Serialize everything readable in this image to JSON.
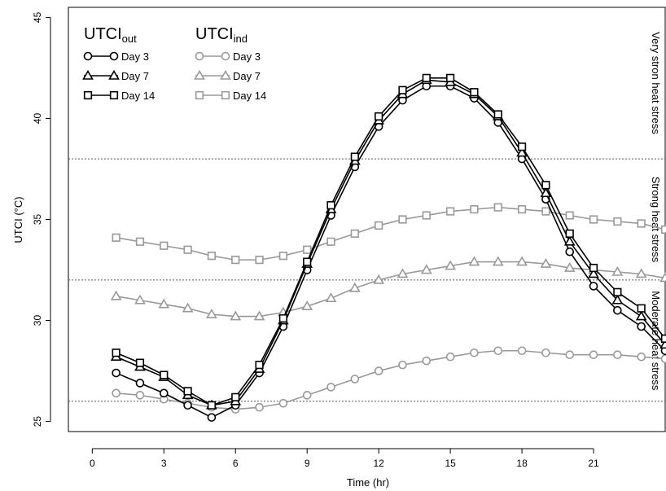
{
  "chart_data": {
    "type": "line",
    "xlabel": "Time (hr)",
    "ylabel": "UTCI (°C)",
    "xlim": [
      -1,
      24
    ],
    "ylim": [
      24.5,
      45.5
    ],
    "x_ticks": [
      0,
      3,
      6,
      9,
      12,
      15,
      18,
      21
    ],
    "y_ticks": [
      25,
      30,
      35,
      40,
      45
    ],
    "x": [
      1,
      2,
      3,
      4,
      5,
      6,
      7,
      8,
      9,
      10,
      11,
      12,
      13,
      14,
      15,
      16,
      17,
      18,
      19,
      20,
      21,
      22,
      23,
      24
    ],
    "thresholds": [
      {
        "value": 38,
        "label": "Very stron heat stress",
        "label_from": 38,
        "label_to": 45.5
      },
      {
        "value": 32,
        "label": "Strong heat stress",
        "label_from": 32,
        "label_to": 38
      },
      {
        "value": 26,
        "label": "Moderate heat stress",
        "label_from": 26,
        "label_to": 32
      }
    ],
    "legend_groups": [
      {
        "title_main": "UTCI",
        "title_sub": "out",
        "group": "out"
      },
      {
        "title_main": "UTCI",
        "title_sub": "ind",
        "group": "ind"
      }
    ],
    "series": [
      {
        "group": "out",
        "name": "Day 3",
        "marker": "circle",
        "color": "#000000",
        "values": [
          27.4,
          26.9,
          26.4,
          25.8,
          25.2,
          25.8,
          27.4,
          29.7,
          32.5,
          35.2,
          37.6,
          39.6,
          40.9,
          41.6,
          41.6,
          41.0,
          39.8,
          38.0,
          36.0,
          33.4,
          31.7,
          30.5,
          29.7,
          28.5
        ]
      },
      {
        "group": "out",
        "name": "Day 7",
        "marker": "triangle",
        "color": "#000000",
        "values": [
          28.2,
          27.7,
          27.2,
          26.3,
          25.8,
          26.0,
          27.6,
          30.0,
          32.8,
          35.5,
          37.9,
          39.9,
          41.2,
          41.9,
          41.8,
          41.2,
          40.1,
          38.3,
          36.3,
          33.9,
          32.3,
          31.0,
          30.2,
          28.8
        ]
      },
      {
        "group": "out",
        "name": "Day 14",
        "marker": "square",
        "color": "#000000",
        "values": [
          28.4,
          27.9,
          27.3,
          26.5,
          25.8,
          26.2,
          27.8,
          30.1,
          32.9,
          35.7,
          38.1,
          40.1,
          41.4,
          42.0,
          42.0,
          41.3,
          40.2,
          38.6,
          36.7,
          34.3,
          32.6,
          31.4,
          30.6,
          29.1
        ]
      },
      {
        "group": "ind",
        "name": "Day 3",
        "marker": "circle",
        "color": "#999999",
        "values": [
          26.4,
          26.3,
          26.1,
          25.9,
          25.7,
          25.6,
          25.7,
          25.9,
          26.3,
          26.7,
          27.1,
          27.5,
          27.8,
          28.0,
          28.2,
          28.4,
          28.5,
          28.5,
          28.4,
          28.3,
          28.3,
          28.3,
          28.2,
          28.1
        ]
      },
      {
        "group": "ind",
        "name": "Day 7",
        "marker": "triangle",
        "color": "#999999",
        "values": [
          31.2,
          31.0,
          30.8,
          30.6,
          30.3,
          30.2,
          30.2,
          30.4,
          30.7,
          31.1,
          31.6,
          32.0,
          32.3,
          32.5,
          32.7,
          32.9,
          32.9,
          32.9,
          32.8,
          32.6,
          32.5,
          32.4,
          32.3,
          32.1
        ]
      },
      {
        "group": "ind",
        "name": "Day 14",
        "marker": "square",
        "color": "#999999",
        "values": [
          34.1,
          33.9,
          33.7,
          33.5,
          33.2,
          33.0,
          33.0,
          33.2,
          33.5,
          33.9,
          34.3,
          34.7,
          35.0,
          35.2,
          35.4,
          35.5,
          35.6,
          35.5,
          35.4,
          35.2,
          35.0,
          34.9,
          34.8,
          34.5
        ]
      }
    ]
  }
}
